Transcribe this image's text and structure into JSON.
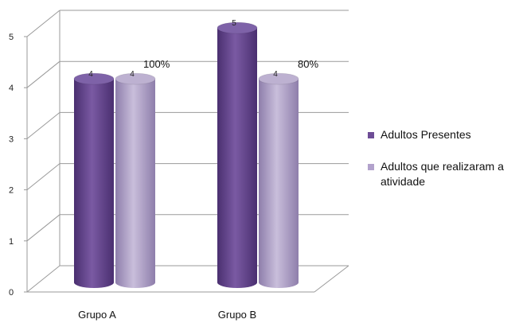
{
  "chart_data": {
    "type": "bar",
    "style": "3d-cylinder",
    "categories": [
      "Grupo A",
      "Grupo B"
    ],
    "series": [
      {
        "name": "Adultos Presentes",
        "values": [
          4,
          5
        ],
        "color": "#6e4d96"
      },
      {
        "name": "Adultos que realizaram a atividade",
        "values": [
          4,
          4
        ],
        "color": "#b2a2cc"
      }
    ],
    "data_labels": [
      "4",
      "5",
      "4",
      "4"
    ],
    "annotations": [
      "100%",
      "80%"
    ],
    "yticks": [
      "0",
      "1",
      "2",
      "3",
      "4",
      "5"
    ],
    "ylim": [
      0,
      5
    ],
    "grid": true,
    "legend_position": "right"
  }
}
